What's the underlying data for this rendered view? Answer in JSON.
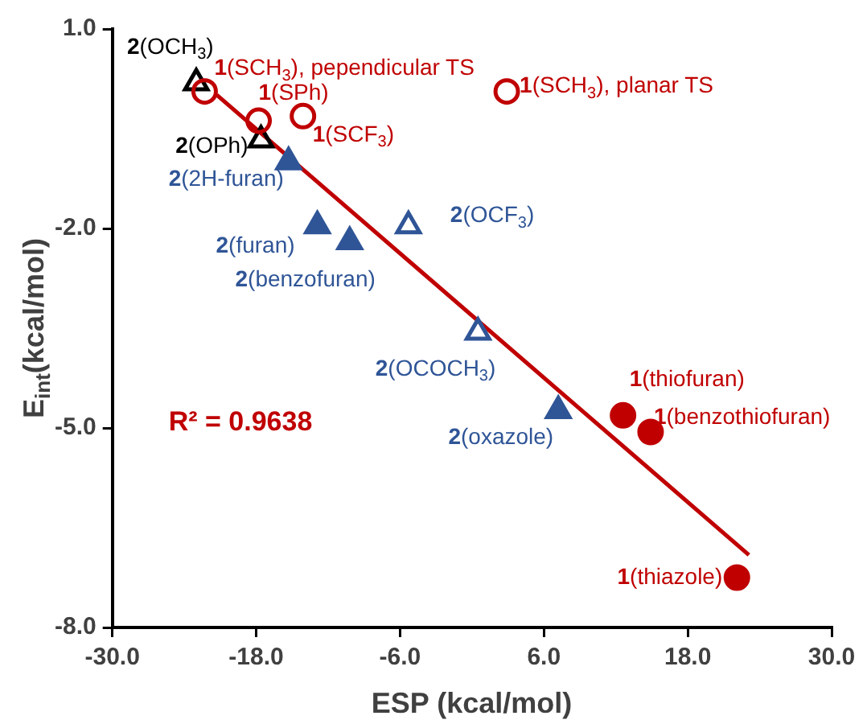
{
  "chart_data": {
    "type": "scatter",
    "xlabel": "ESP (kcal/mol)",
    "ylabel": "E$_{int}$(kcal/mol)",
    "xlim": [
      -30,
      30
    ],
    "ylim": [
      -8,
      1
    ],
    "xticks": [
      {
        "value": -30,
        "label": "-30.0"
      },
      {
        "value": -18,
        "label": "-18.0"
      },
      {
        "value": -6,
        "label": "-6.0"
      },
      {
        "value": 6,
        "label": "6.0"
      },
      {
        "value": 18,
        "label": "18.0"
      },
      {
        "value": 30,
        "label": "30.0"
      }
    ],
    "yticks": [
      {
        "value": 1,
        "label": "1.0"
      },
      {
        "value": -2,
        "label": "-2.0"
      },
      {
        "value": -5,
        "label": "-5.0"
      },
      {
        "value": -8,
        "label": "-8.0"
      }
    ],
    "grid": false,
    "legend": false,
    "series": [
      {
        "color": "#c00000",
        "marker": "circle",
        "x": [
          -22.3,
          -17.8,
          -14.1,
          2.9
        ],
        "values": [
          0.06,
          -0.38,
          -0.31,
          0.06
        ]
      },
      {
        "color": "#c00000",
        "marker": "circle",
        "x": [
          12.6,
          14.9,
          22.1
        ],
        "values": [
          -4.81,
          -5.06,
          -7.25
        ]
      },
      {
        "color": "#000000",
        "marker": "triangle",
        "x": [
          -23.0,
          -17.6
        ],
        "values": [
          0.19,
          -0.67
        ]
      },
      {
        "color": "#2f5597",
        "marker": "triangle",
        "x": [
          -15.3,
          -12.9,
          -10.2,
          7.2
        ],
        "values": [
          -1.0,
          -1.96,
          -2.2,
          -4.74
        ]
      },
      {
        "color": "#2f5597",
        "marker": "triangle",
        "x": [
          -5.3,
          0.5
        ],
        "values": [
          -1.96,
          -3.56
        ]
      },
      {
        "type": "line",
        "color": "#c00000",
        "marker": "none",
        "x": [
          -21.3,
          23.1
        ],
        "values": [
          0.01,
          -6.91
        ]
      }
    ],
    "annotations": [
      {
        "text": "2(OCH$_{3}$)",
        "x": -23.0,
        "y": 0.19
      },
      {
        "text": "1(SCH$_{3}$), pependicular TS",
        "x": -22.3,
        "y": 0.06
      },
      {
        "text": "1(SPh)",
        "x": -17.8,
        "y": -0.38
      },
      {
        "text": "1(SCF$_{3}$)",
        "x": -14.1,
        "y": -0.31
      },
      {
        "text": "1(SCH$_{3}$), planar TS",
        "x": 2.9,
        "y": 0.06
      },
      {
        "text": "2(OPh)",
        "x": -17.6,
        "y": -0.67
      },
      {
        "text": "2(2H-furan)",
        "x": -15.3,
        "y": -1.0
      },
      {
        "text": "2(furan)",
        "x": -12.9,
        "y": -1.96
      },
      {
        "text": "2(benzofuran)",
        "x": -10.2,
        "y": -2.2
      },
      {
        "text": "2(OCF$_{3}$)",
        "x": -5.3,
        "y": -1.96
      },
      {
        "text": "2(OCOCH$_{3}$)",
        "x": 0.5,
        "y": -3.56
      },
      {
        "text": "2(oxazole)",
        "x": 7.2,
        "y": -4.74
      },
      {
        "text": "1(thiofuran)",
        "x": 12.6,
        "y": -4.81
      },
      {
        "text": "1(benzothiofuran)",
        "x": 14.9,
        "y": -5.06
      },
      {
        "text": "1(thiazole)",
        "x": 22.1,
        "y": -7.25
      },
      "R² = 0.9638"
    ]
  }
}
